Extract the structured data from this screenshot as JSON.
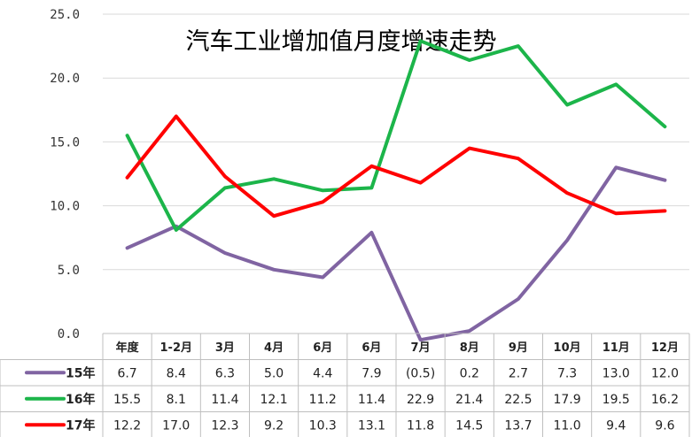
{
  "chart_data": {
    "type": "line",
    "title": "汽车工业增加值月度增速走势",
    "categories": [
      "年度",
      "1-2月",
      "3月",
      "4月",
      "6月",
      "6月",
      "7月",
      "8月",
      "9月",
      "10月",
      "11月",
      "12月"
    ],
    "ylim": [
      0,
      25
    ],
    "yticks": [
      "0.0",
      "5.0",
      "10.0",
      "15.0",
      "20.0",
      "25.0"
    ],
    "grid": true,
    "legend": "table-left",
    "series": [
      {
        "name": "15年",
        "color": "#8064a2",
        "values": [
          6.7,
          8.4,
          6.3,
          5.0,
          4.4,
          7.9,
          -0.5,
          0.2,
          2.7,
          7.3,
          13.0,
          12.0
        ],
        "labels": [
          "6.7",
          "8.4",
          "6.3",
          "5.0",
          "4.4",
          "7.9",
          "(0.5)",
          "0.2",
          "2.7",
          "7.3",
          "13.0",
          "12.0"
        ]
      },
      {
        "name": "16年",
        "color": "#1cb54a",
        "values": [
          15.5,
          8.1,
          11.4,
          12.1,
          11.2,
          11.4,
          22.9,
          21.4,
          22.5,
          17.9,
          19.5,
          16.2
        ],
        "labels": [
          "15.5",
          "8.1",
          "11.4",
          "12.1",
          "11.2",
          "11.4",
          "22.9",
          "21.4",
          "22.5",
          "17.9",
          "19.5",
          "16.2"
        ]
      },
      {
        "name": "17年",
        "color": "#ff0000",
        "values": [
          12.2,
          17.0,
          12.3,
          9.2,
          10.3,
          13.1,
          11.8,
          14.5,
          13.7,
          11.0,
          9.4,
          9.6
        ],
        "labels": [
          "12.2",
          "17.0",
          "12.3",
          "9.2",
          "10.3",
          "13.1",
          "11.8",
          "14.5",
          "13.7",
          "11.0",
          "9.4",
          "9.6"
        ]
      }
    ]
  }
}
